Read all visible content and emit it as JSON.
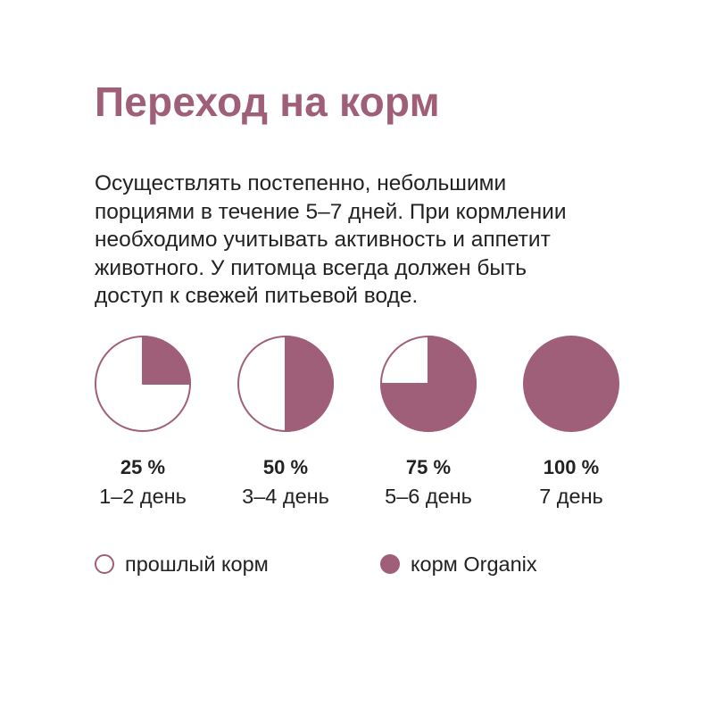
{
  "title": "Переход на корм",
  "description_lines": [
    "Осуществлять постепенно, небольшими",
    "порциями в течение 5–7 дней. При кормлении",
    "необходимо учитывать активность и аппетит",
    "животного. У питомца всегда должен быть",
    "доступ к свежей питьевой воде."
  ],
  "colors": {
    "accent": "#a05f78",
    "text": "#222222",
    "background": "#ffffff"
  },
  "chart_data": {
    "type": "pie",
    "title": "",
    "series": [
      {
        "name": "прошлый корм",
        "color": "#ffffff"
      },
      {
        "name": "корм Organix",
        "color": "#a05f78"
      }
    ],
    "steps": [
      {
        "label": "25 %",
        "day": "1–2 день",
        "value": 25
      },
      {
        "label": "50 %",
        "day": "3–4 день",
        "value": 50
      },
      {
        "label": "75 %",
        "day": "5–6 день",
        "value": 75
      },
      {
        "label": "100 %",
        "day": "7 день",
        "value": 100
      }
    ]
  },
  "legend": {
    "old_food": "прошлый корм",
    "new_food": "корм Organix"
  }
}
